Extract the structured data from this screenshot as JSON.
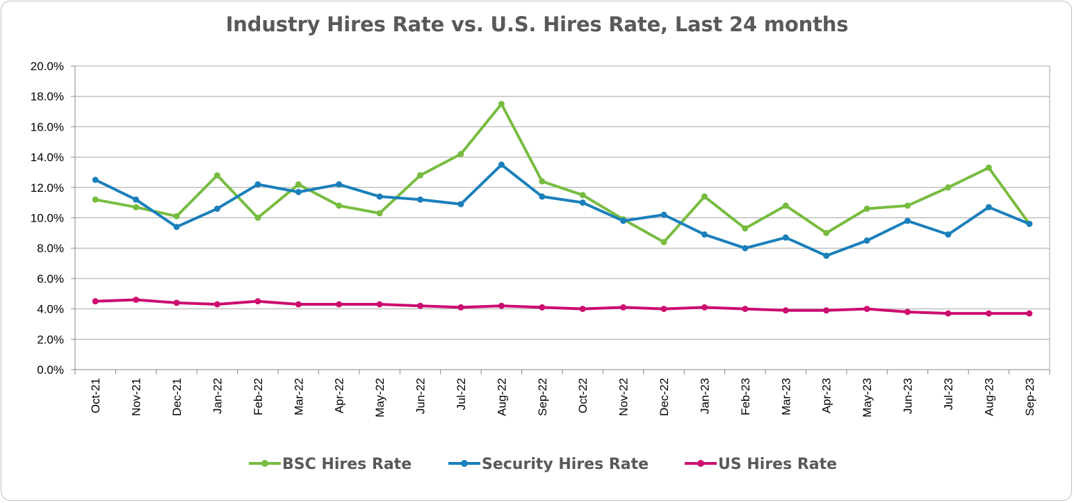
{
  "chart_data": {
    "type": "line",
    "title": "Industry Hires Rate vs. U.S. Hires Rate, Last 24 months",
    "xlabel": "",
    "ylabel": "",
    "categories": [
      "Oct-21",
      "Nov-21",
      "Dec-21",
      "Jan-22",
      "Feb-22",
      "Mar-22",
      "Apr-22",
      "May-22",
      "Jun-22",
      "Jul-22",
      "Aug-22",
      "Sep-22",
      "Oct-22",
      "Nov-22",
      "Dec-22",
      "Jan-23",
      "Feb-23",
      "Mar-23",
      "Apr-23",
      "May-23",
      "Jun-23",
      "Jul-23",
      "Aug-23",
      "Sep-23"
    ],
    "ylim": [
      0,
      20
    ],
    "yticks": [
      "0.0%",
      "2.0%",
      "4.0%",
      "6.0%",
      "8.0%",
      "10.0%",
      "12.0%",
      "14.0%",
      "16.0%",
      "18.0%",
      "20.0%"
    ],
    "grid": true,
    "legend_position": "bottom",
    "series": [
      {
        "name": "BSC Hires Rate",
        "color": "#77bc40",
        "values": [
          11.2,
          10.7,
          10.1,
          12.8,
          10.0,
          12.2,
          10.8,
          10.3,
          12.8,
          14.2,
          17.5,
          12.4,
          11.5,
          9.9,
          8.4,
          11.4,
          9.3,
          10.8,
          9.0,
          10.6,
          10.8,
          12.0,
          13.3,
          9.6
        ]
      },
      {
        "name": "Security Hires Rate",
        "color": "#1a7fbb",
        "values": [
          12.5,
          11.2,
          9.4,
          10.6,
          12.2,
          11.7,
          12.2,
          11.4,
          11.2,
          10.9,
          13.5,
          11.4,
          11.0,
          9.8,
          10.2,
          8.9,
          8.0,
          8.7,
          7.5,
          8.5,
          9.8,
          8.9,
          10.7,
          9.6
        ]
      },
      {
        "name": "US Hires Rate",
        "color": "#cc0c6f",
        "values": [
          4.5,
          4.6,
          4.4,
          4.3,
          4.5,
          4.3,
          4.3,
          4.3,
          4.2,
          4.1,
          4.2,
          4.1,
          4.0,
          4.1,
          4.0,
          4.1,
          4.0,
          3.9,
          3.9,
          4.0,
          3.8,
          3.7,
          3.7,
          3.7
        ]
      }
    ]
  }
}
